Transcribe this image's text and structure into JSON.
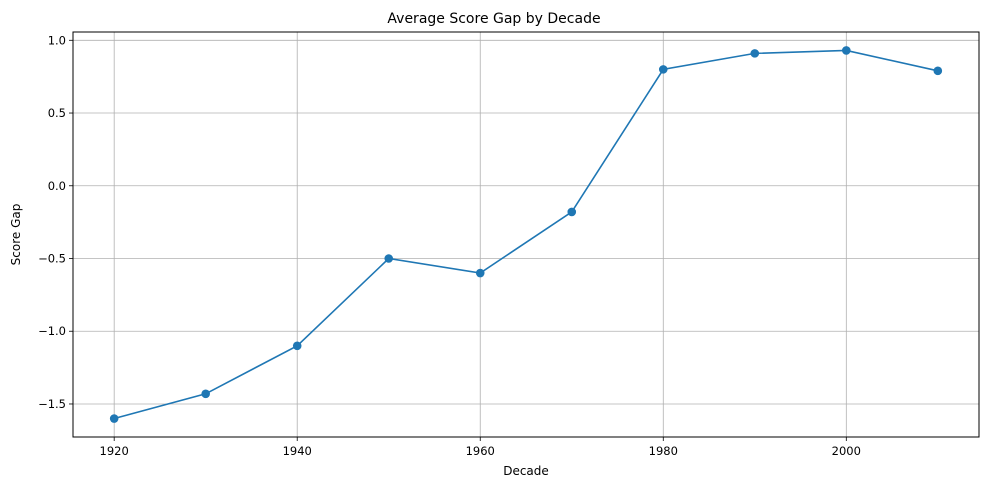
{
  "chart_data": {
    "type": "line",
    "title": "Average Score Gap by Decade",
    "xlabel": "Decade",
    "ylabel": "Score Gap",
    "x": [
      1920,
      1930,
      1940,
      1950,
      1960,
      1970,
      1980,
      1990,
      2000,
      2010
    ],
    "series": [
      {
        "values": [
          -1.6,
          -1.43,
          -1.1,
          -0.5,
          -0.6,
          -0.18,
          0.8,
          0.91,
          0.93,
          0.79
        ],
        "color": "#1f77b4",
        "marker": "circle"
      }
    ],
    "xlim": [
      1915.5,
      2014.5
    ],
    "ylim": [
      -1.727,
      1.057
    ],
    "xticks": [
      "1920",
      "1940",
      "1960",
      "1980",
      "2000"
    ],
    "yticks": [
      "1.0",
      "0.5",
      "0.0",
      "−0.5",
      "−1.0",
      "−1.5"
    ],
    "grid": true,
    "colors": {
      "line": "#1f77b4",
      "grid": "#b0b0b0",
      "axes": "#000000"
    }
  }
}
